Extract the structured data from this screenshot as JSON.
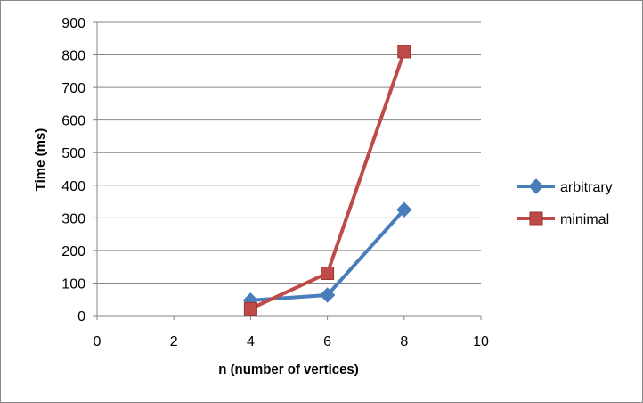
{
  "chart_data": {
    "type": "line",
    "title": "",
    "xlabel": "n (number of vertices)",
    "ylabel": "Time (ms)",
    "xlim": [
      0,
      10
    ],
    "ylim": [
      0,
      900
    ],
    "x_ticks": [
      0,
      2,
      4,
      6,
      8,
      10
    ],
    "y_ticks": [
      0,
      100,
      200,
      300,
      400,
      500,
      600,
      700,
      800,
      900
    ],
    "grid": "horizontal",
    "legend_position": "right",
    "series": [
      {
        "name": "arbitrary",
        "color": "#4a7ebb",
        "marker": "diamond",
        "points": [
          {
            "x": 4,
            "y": 47
          },
          {
            "x": 6,
            "y": 63
          },
          {
            "x": 8,
            "y": 325
          }
        ]
      },
      {
        "name": "minimal",
        "color": "#be4b48",
        "marker": "square",
        "points": [
          {
            "x": 4,
            "y": 21
          },
          {
            "x": 6,
            "y": 130
          },
          {
            "x": 8,
            "y": 810
          }
        ]
      }
    ]
  }
}
